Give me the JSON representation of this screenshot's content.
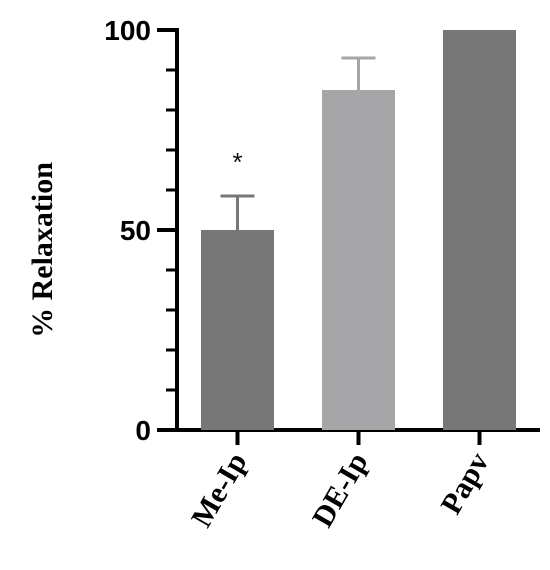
{
  "chart_data": {
    "type": "bar",
    "title": "",
    "xlabel": "",
    "ylabel": "% Relaxation",
    "categories": [
      "Me-Ip",
      "DE-Ip",
      "Papv"
    ],
    "values": [
      50,
      85,
      100
    ],
    "error_plus": [
      8.5,
      8,
      0
    ],
    "ylim": [
      0,
      100
    ],
    "yticks": [
      0,
      50,
      100
    ],
    "bar_colors": [
      "#777777",
      "#a6a6a8",
      "#777777"
    ],
    "annotations": [
      {
        "category": "Me-Ip",
        "text": "*"
      }
    ],
    "grid": false
  }
}
